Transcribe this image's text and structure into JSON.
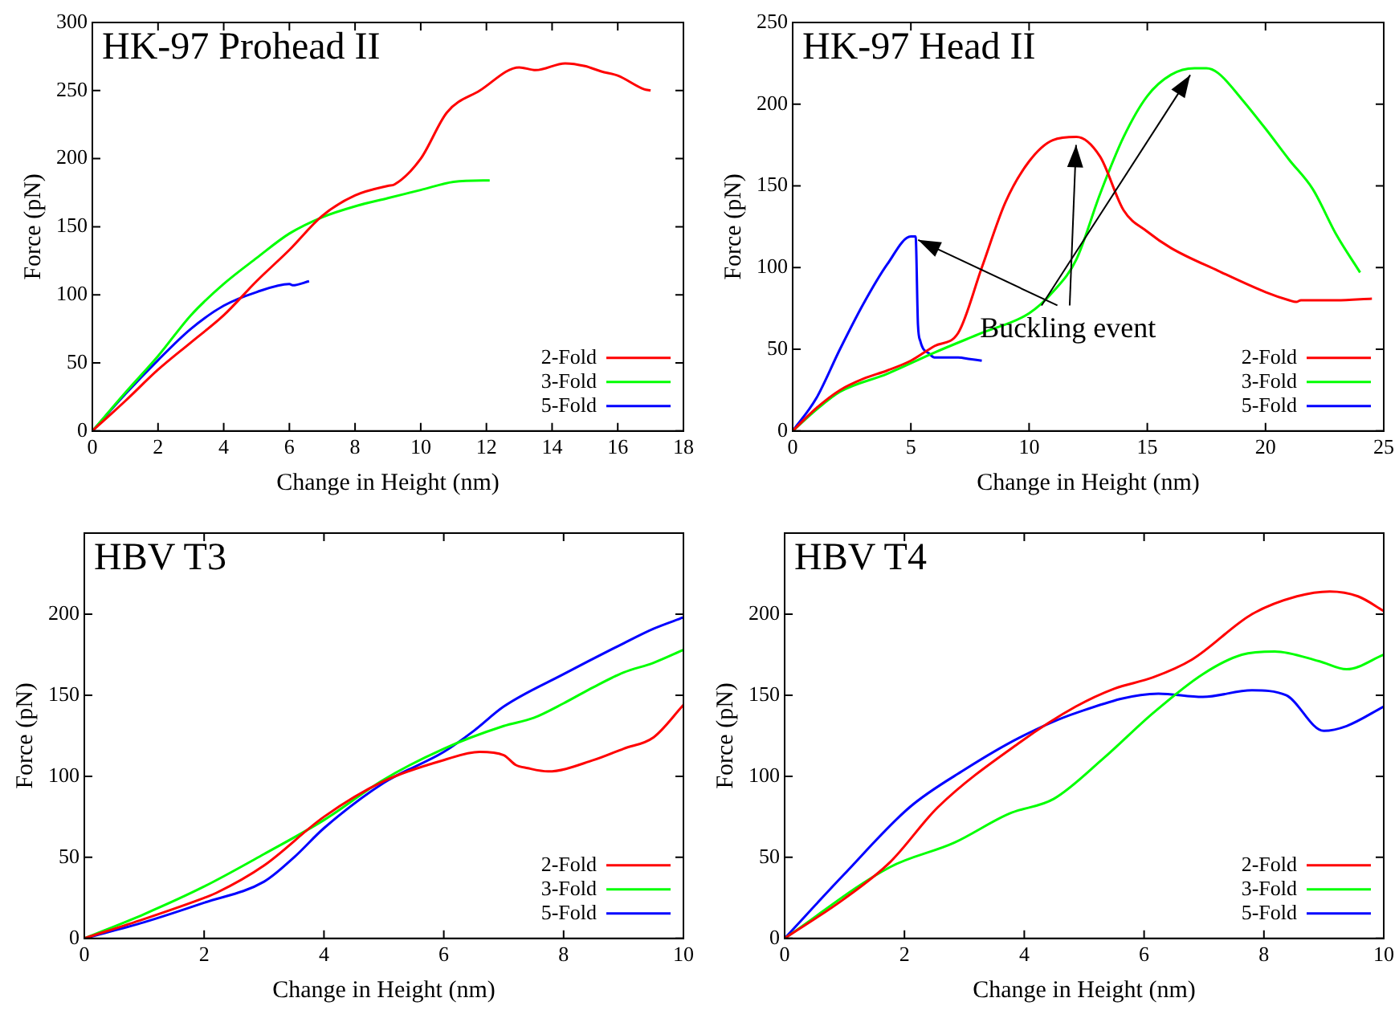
{
  "chart_data": [
    {
      "type": "line",
      "title": "HK-97 Prohead II",
      "xlabel": "Change in Height (nm)",
      "ylabel": "Force (pN)",
      "xlim": [
        0,
        18
      ],
      "xticks": [
        0,
        2,
        4,
        6,
        8,
        10,
        12,
        14,
        16,
        18
      ],
      "ylim": [
        0,
        300
      ],
      "yticks": [
        0,
        50,
        100,
        150,
        200,
        250,
        300
      ],
      "legend": "bottom right",
      "marker": "none",
      "series": [
        {
          "name": "2-Fold",
          "color": "#ff0000",
          "x": [
            0,
            1,
            2,
            3,
            4,
            5,
            6,
            7,
            8,
            9,
            9.2,
            10,
            10.8,
            11.8,
            13,
            13.5,
            14.4,
            15,
            15.5,
            16,
            16.8,
            17
          ],
          "values": [
            0,
            22,
            45,
            65,
            85,
            110,
            133,
            158,
            173,
            180,
            181,
            200,
            234,
            250,
            267,
            265,
            270,
            268,
            264,
            261,
            251,
            250
          ]
        },
        {
          "name": "3-Fold",
          "color": "#00ff00",
          "x": [
            0,
            1,
            2,
            3,
            4,
            5,
            6,
            7,
            8,
            9,
            10,
            11,
            11.9,
            12.1
          ],
          "values": [
            0,
            28,
            55,
            85,
            108,
            127,
            145,
            157,
            165,
            171,
            177,
            183,
            184,
            184
          ]
        },
        {
          "name": "5-Fold",
          "color": "#0000ff",
          "x": [
            0,
            1,
            2,
            3,
            4,
            5,
            6,
            6.1,
            6.6
          ],
          "values": [
            0,
            27,
            52,
            75,
            92,
            102,
            108,
            107,
            110
          ]
        }
      ]
    },
    {
      "type": "line",
      "title": "HK-97 Head II",
      "xlabel": "Change in Height (nm)",
      "ylabel": "Force (pN)",
      "xlim": [
        0,
        25
      ],
      "xticks": [
        0,
        5,
        10,
        15,
        20,
        25
      ],
      "ylim": [
        0,
        250
      ],
      "yticks": [
        0,
        50,
        100,
        150,
        200,
        250
      ],
      "legend": "bottom right",
      "marker": "none",
      "annotations": [
        {
          "text": "Buckling event",
          "x": 12,
          "y": 180
        }
      ],
      "series": [
        {
          "name": "2-Fold",
          "color": "#ff0000",
          "x": [
            0,
            1,
            2,
            3,
            4,
            5,
            6,
            7,
            8,
            9,
            10,
            11,
            12,
            13,
            14,
            15,
            16,
            18,
            20,
            21,
            21.3,
            21.5,
            23,
            24.5
          ],
          "values": [
            0,
            14,
            25,
            32,
            37,
            43,
            52,
            60,
            100,
            140,
            165,
            178,
            180,
            168,
            135,
            122,
            112,
            98,
            85,
            80,
            79,
            80,
            80,
            81
          ]
        },
        {
          "name": "3-Fold",
          "color": "#00ff00",
          "x": [
            0,
            1,
            2,
            4,
            6,
            8,
            10,
            11,
            12,
            13,
            14,
            15,
            16,
            17,
            17.5,
            18,
            19,
            20,
            21,
            22,
            23,
            24
          ],
          "values": [
            0,
            13,
            24,
            35,
            48,
            60,
            72,
            85,
            105,
            145,
            180,
            205,
            218,
            222,
            222,
            219,
            203,
            185,
            166,
            148,
            120,
            97
          ]
        },
        {
          "name": "5-Fold",
          "color": "#0000ff",
          "x": [
            0,
            1,
            2,
            3,
            4,
            5,
            5.2,
            5.3,
            5.4,
            5.8,
            6,
            7,
            7.5,
            8
          ],
          "values": [
            0,
            20,
            50,
            78,
            102,
            119,
            119,
            65,
            55,
            47,
            45,
            45,
            44,
            43
          ]
        }
      ]
    },
    {
      "type": "line",
      "title": "HBV T3",
      "xlabel": "Change in Height (nm)",
      "ylabel": "Force (pN)",
      "xlim": [
        0,
        10
      ],
      "xticks": [
        0,
        2,
        4,
        6,
        8,
        10
      ],
      "ylim": [
        0,
        250
      ],
      "yticks": [
        0,
        50,
        100,
        150,
        200
      ],
      "legend": "bottom right",
      "marker": "none",
      "series": [
        {
          "name": "2-Fold",
          "color": "#ff0000",
          "x": [
            0,
            1,
            2,
            2.2,
            3,
            4,
            5,
            6,
            6.6,
            7,
            7.2,
            7.4,
            7.74,
            8.5,
            9,
            9.5,
            10
          ],
          "values": [
            0,
            12,
            25,
            28,
            45,
            75,
            97,
            110,
            115,
            113,
            107,
            105,
            103,
            110,
            117,
            124,
            144
          ]
        },
        {
          "name": "3-Fold",
          "color": "#00ff00",
          "x": [
            0,
            1,
            2,
            3,
            4,
            5,
            6,
            7,
            7.5,
            8,
            8.5,
            9,
            9.5,
            10
          ],
          "values": [
            0,
            15,
            32,
            52,
            73,
            98,
            117,
            131,
            136,
            145,
            155,
            164,
            170,
            178
          ]
        },
        {
          "name": "5-Fold",
          "color": "#0000ff",
          "x": [
            0,
            1,
            2,
            3,
            3.5,
            4,
            5,
            6,
            6.5,
            7,
            8,
            9,
            9.5,
            10
          ],
          "values": [
            0,
            10,
            22,
            35,
            50,
            68,
            96,
            115,
            128,
            143,
            163,
            182,
            191,
            198
          ]
        }
      ]
    },
    {
      "type": "line",
      "title": "HBV T4",
      "xlabel": "Change in Height (nm)",
      "ylabel": "Force (pN)",
      "xlim": [
        0,
        10
      ],
      "xticks": [
        0,
        2,
        4,
        6,
        8,
        10
      ],
      "ylim": [
        0,
        250
      ],
      "yticks": [
        0,
        50,
        100,
        150,
        200
      ],
      "legend": "bottom right",
      "marker": "none",
      "series": [
        {
          "name": "2-Fold",
          "color": "#ff0000",
          "x": [
            0,
            0.98,
            1.76,
            2.56,
            3.93,
            4.86,
            5.5,
            6.15,
            6.8,
            7.8,
            8.55,
            9.1,
            9.57,
            10
          ],
          "values": [
            0,
            24,
            47,
            81,
            121,
            143,
            154,
            161,
            172,
            200,
            211,
            214,
            211,
            202
          ]
        },
        {
          "name": "3-Fold",
          "color": "#00ff00",
          "x": [
            0,
            1.76,
            2.83,
            3.75,
            4.49,
            5.32,
            6.15,
            6.98,
            7.63,
            8.18,
            8.92,
            9.38,
            10
          ],
          "values": [
            0,
            44,
            59,
            77,
            86,
            111,
            139,
            163,
            175,
            177,
            171,
            166,
            175
          ]
        },
        {
          "name": "5-Fold",
          "color": "#0000ff",
          "x": [
            0,
            0.98,
            2.09,
            3,
            3.93,
            4.86,
            6.24,
            6.98,
            7.8,
            8.37,
            9,
            9.38,
            10
          ],
          "values": [
            0,
            39,
            81,
            104,
            124,
            139,
            151,
            149,
            153,
            150,
            128,
            131,
            143
          ]
        }
      ]
    }
  ]
}
